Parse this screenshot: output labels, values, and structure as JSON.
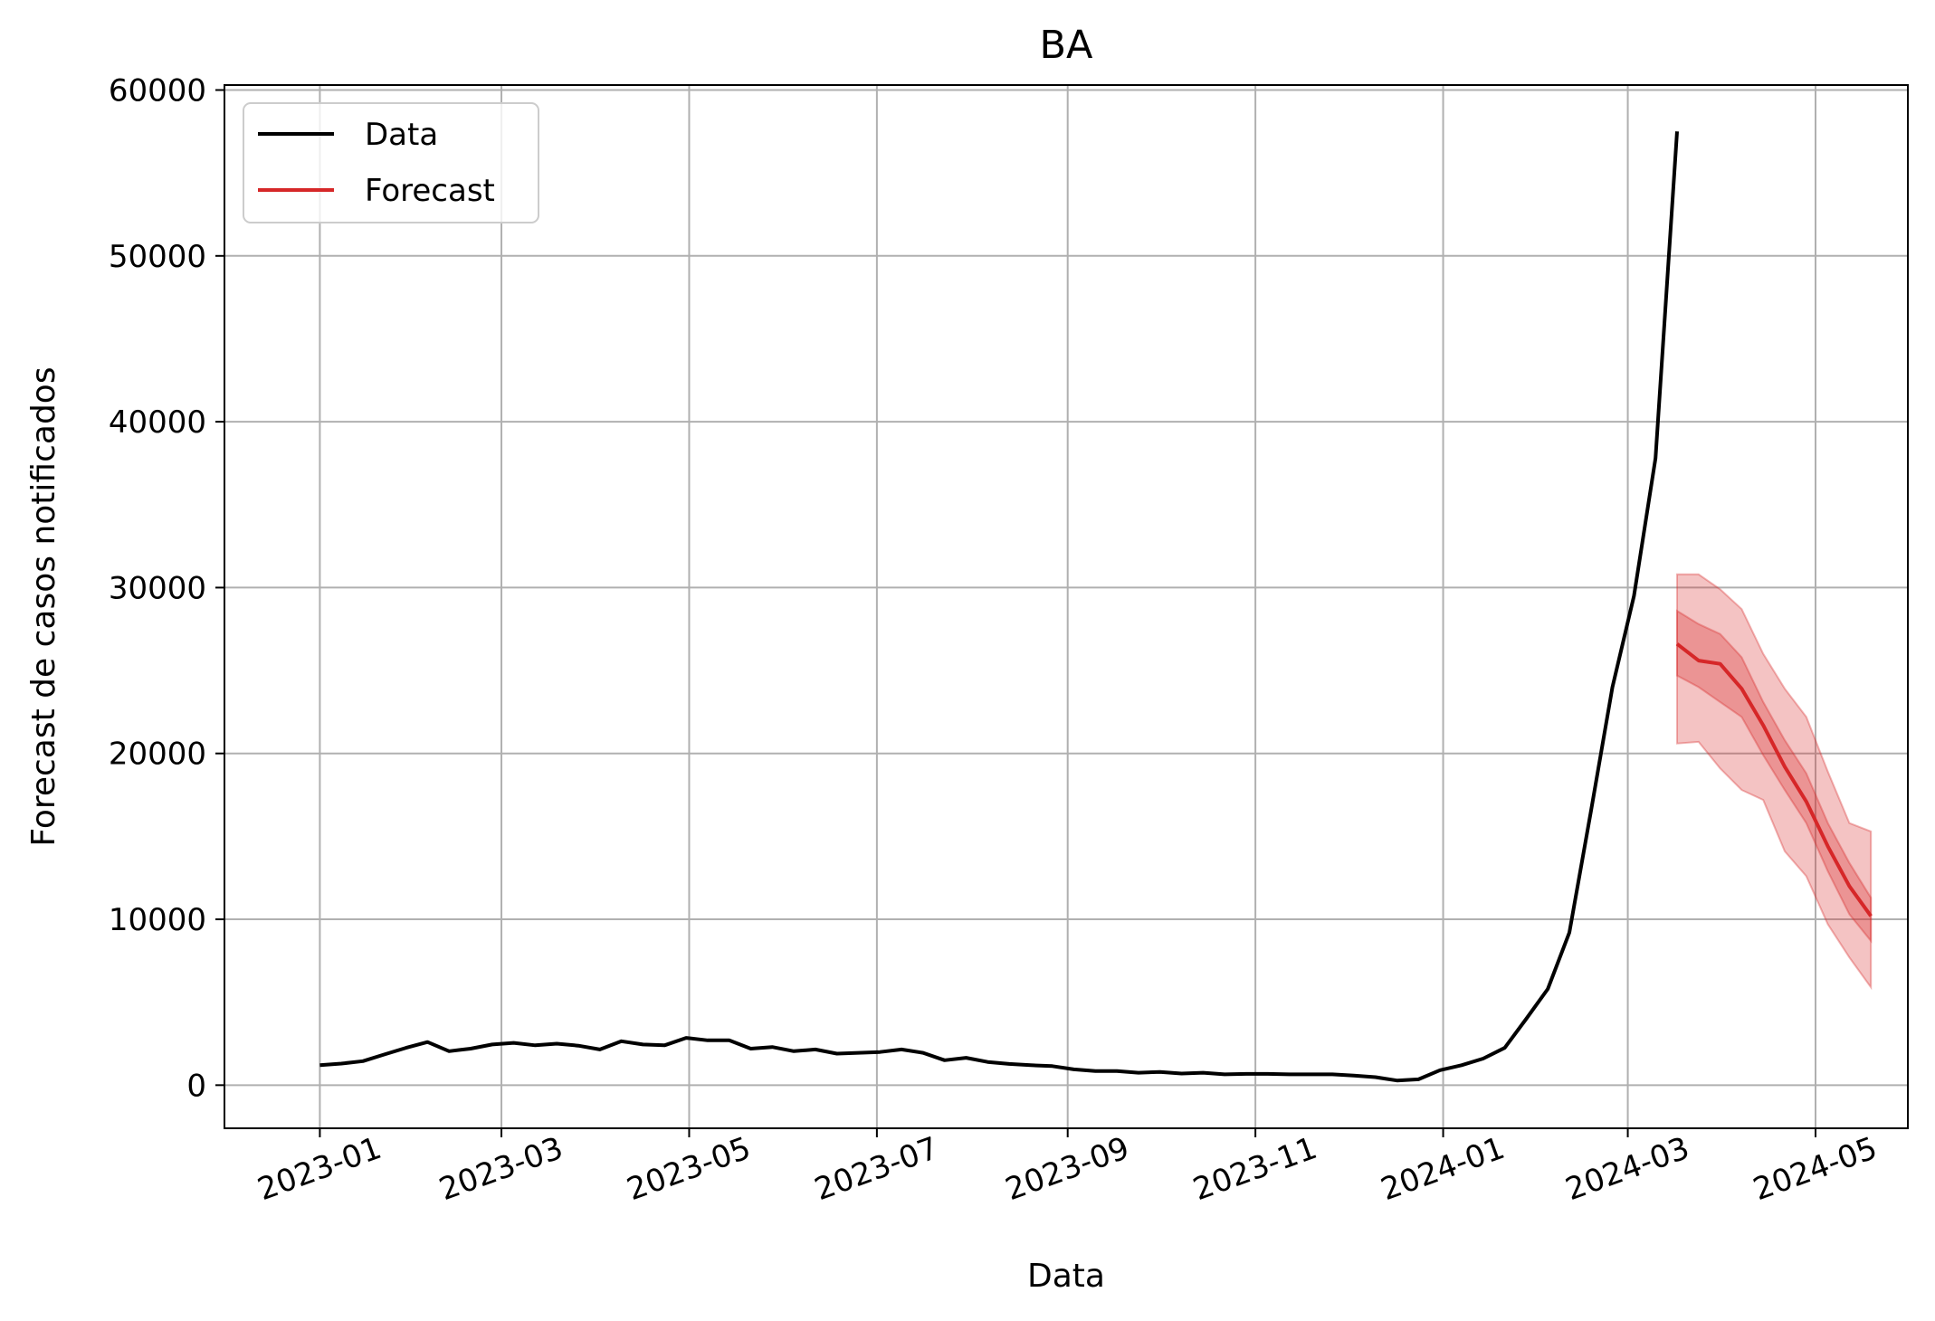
{
  "chart_data": {
    "type": "line",
    "title": "BA",
    "xlabel": "Data",
    "ylabel": "Forecast de casos notificados",
    "xlim": [
      "2022-12-01",
      "2024-05-31"
    ],
    "ylim": [
      -2600,
      60300
    ],
    "grid": true,
    "legend_position": "upper-left",
    "x_ticks": [
      "2023-01",
      "2023-03",
      "2023-05",
      "2023-07",
      "2023-09",
      "2023-11",
      "2024-01",
      "2024-03",
      "2024-05"
    ],
    "y_ticks": [
      0,
      10000,
      20000,
      30000,
      40000,
      50000,
      60000
    ],
    "series": [
      {
        "name": "Data",
        "color": "#000000",
        "x": [
          "2023-01-01",
          "2023-01-08",
          "2023-01-15",
          "2023-01-22",
          "2023-01-29",
          "2023-02-05",
          "2023-02-12",
          "2023-02-19",
          "2023-02-26",
          "2023-03-05",
          "2023-03-12",
          "2023-03-19",
          "2023-03-26",
          "2023-04-02",
          "2023-04-09",
          "2023-04-16",
          "2023-04-23",
          "2023-04-30",
          "2023-05-07",
          "2023-05-14",
          "2023-05-21",
          "2023-05-28",
          "2023-06-04",
          "2023-06-11",
          "2023-06-18",
          "2023-06-25",
          "2023-07-02",
          "2023-07-09",
          "2023-07-16",
          "2023-07-23",
          "2023-07-30",
          "2023-08-06",
          "2023-08-13",
          "2023-08-20",
          "2023-08-27",
          "2023-09-03",
          "2023-09-10",
          "2023-09-17",
          "2023-09-24",
          "2023-10-01",
          "2023-10-08",
          "2023-10-15",
          "2023-10-22",
          "2023-10-29",
          "2023-11-05",
          "2023-11-12",
          "2023-11-19",
          "2023-11-26",
          "2023-12-03",
          "2023-12-10",
          "2023-12-17",
          "2023-12-24",
          "2023-12-31",
          "2024-01-07",
          "2024-01-14",
          "2024-01-21",
          "2024-01-28",
          "2024-02-04",
          "2024-02-11",
          "2024-02-18",
          "2024-02-25",
          "2024-03-03",
          "2024-03-10",
          "2024-03-17"
        ],
        "values": [
          1200,
          1300,
          1450,
          1850,
          2250,
          2600,
          2050,
          2200,
          2450,
          2550,
          2400,
          2500,
          2380,
          2150,
          2650,
          2450,
          2400,
          2850,
          2700,
          2700,
          2200,
          2300,
          2050,
          2150,
          1900,
          1950,
          2000,
          2150,
          1950,
          1500,
          1650,
          1400,
          1280,
          1200,
          1150,
          950,
          850,
          850,
          750,
          800,
          700,
          750,
          650,
          680,
          680,
          650,
          650,
          650,
          580,
          480,
          280,
          350,
          900,
          1200,
          1600,
          2250,
          4000,
          5800,
          9200,
          16500,
          24000,
          29500,
          37800,
          57500
        ]
      },
      {
        "name": "Forecast",
        "color": "#d62728",
        "x": [
          "2024-03-17",
          "2024-03-24",
          "2024-03-31",
          "2024-04-07",
          "2024-04-14",
          "2024-04-21",
          "2024-04-28",
          "2024-05-05",
          "2024-05-12",
          "2024-05-19"
        ],
        "values": [
          26600,
          25600,
          25400,
          23900,
          21700,
          19200,
          17100,
          14400,
          12000,
          10200
        ],
        "interval_50": {
          "lower": [
            24700,
            24000,
            23100,
            22200,
            19900,
            17800,
            15800,
            12900,
            10300,
            8700
          ],
          "upper": [
            28600,
            27800,
            27200,
            25800,
            23100,
            20800,
            18800,
            15800,
            13400,
            11300
          ]
        },
        "interval_95": {
          "lower": [
            20600,
            20700,
            19100,
            17800,
            17200,
            14100,
            12600,
            9700,
            7700,
            5900
          ],
          "upper": [
            30800,
            30800,
            29900,
            28700,
            26000,
            23900,
            22200,
            18900,
            15800,
            15300
          ]
        }
      }
    ]
  }
}
